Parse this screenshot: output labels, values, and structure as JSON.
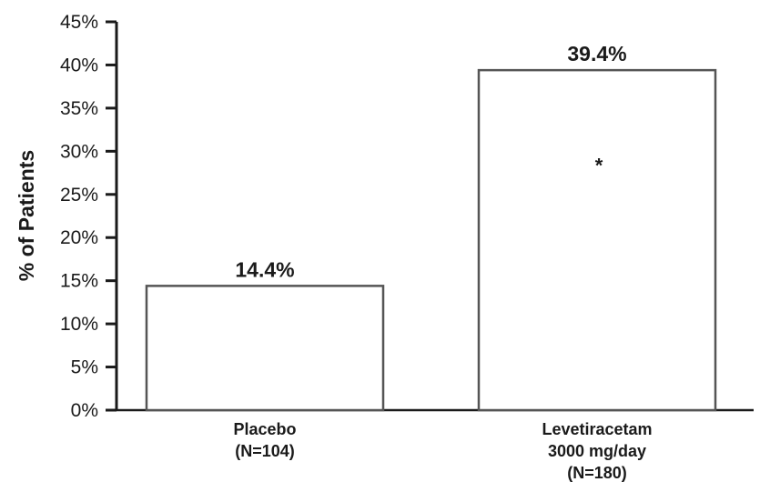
{
  "chart_data": {
    "type": "bar",
    "categories": [
      [
        "Placebo",
        "(N=104)"
      ],
      [
        "Levetiracetam",
        "3000 mg/day",
        "(N=180)"
      ]
    ],
    "values": [
      14.4,
      39.4
    ],
    "data_labels": [
      "14.4%",
      "39.4%"
    ],
    "annotations": [
      {
        "category_index": 1,
        "text": "*"
      }
    ],
    "ylabel": "% of Patients",
    "ylim": [
      0,
      45
    ],
    "yticks": [
      0,
      5,
      10,
      15,
      20,
      25,
      30,
      35,
      40,
      45
    ],
    "ytick_labels": [
      "0%",
      "5%",
      "10%",
      "15%",
      "20%",
      "25%",
      "30%",
      "35%",
      "40%",
      "45%"
    ],
    "grid": false,
    "colors": {
      "bar_fill": "#ffffff",
      "bar_stroke": "#555555",
      "axis": "#1a1a1a"
    }
  }
}
